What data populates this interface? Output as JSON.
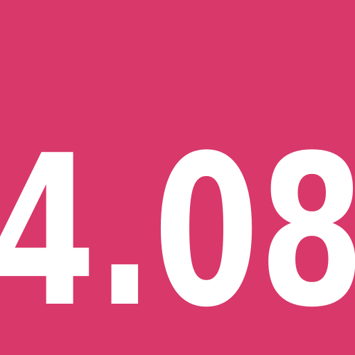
{
  "tile": {
    "background_color": "#d9386a",
    "text_color": "#ffffff",
    "number": "4.08"
  }
}
